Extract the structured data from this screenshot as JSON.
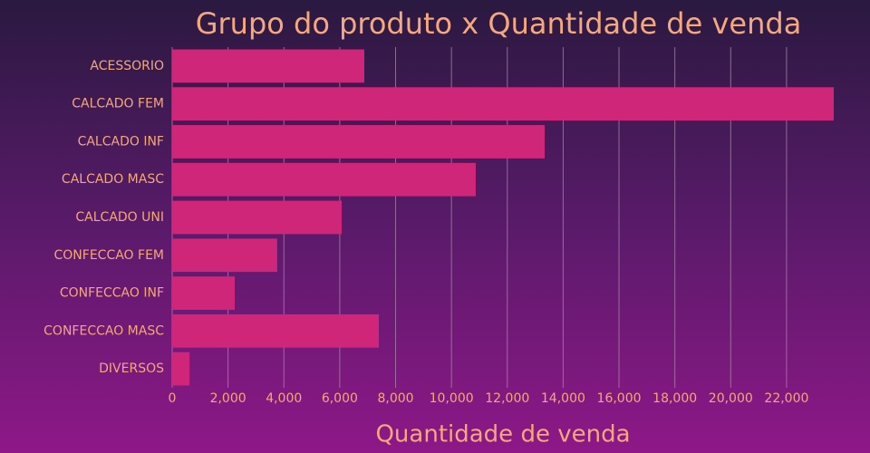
{
  "chart_data": {
    "type": "barh",
    "title": "Grupo do produto x Quantidade de venda",
    "x_label": "Quantidade de venda",
    "categories": [
      "ACESSORIO",
      "CALCADO FEM",
      "CALCADO INF",
      "CALCADO MASC",
      "CALCADO UNI",
      "CONFECCAO FEM",
      "CONFECCAO INF",
      "CONFECCAO MASC",
      "DIVERSOS"
    ],
    "values": [
      6880,
      23690,
      13340,
      10870,
      6070,
      3760,
      2240,
      7400,
      620
    ],
    "color": "#d0267a",
    "xlim": [
      0,
      23690
    ],
    "xticks": [
      0,
      {
        "value": 2000,
        "label": "2,000"
      },
      {
        "value": 4000,
        "label": "4,000"
      },
      {
        "value": 6000,
        "label": "6,000"
      },
      {
        "value": 8000,
        "label": "8,000"
      },
      {
        "value": 10000,
        "label": "10,000"
      },
      {
        "value": 12000,
        "label": "12,000"
      },
      {
        "value": 14000,
        "label": "14,000"
      },
      {
        "value": 16000,
        "label": "16,000"
      },
      {
        "value": 18000,
        "label": "18,000"
      },
      {
        "value": 20000,
        "label": "20,000"
      },
      {
        "value": 22000,
        "label": "22,000"
      }
    ],
    "grid": true
  }
}
